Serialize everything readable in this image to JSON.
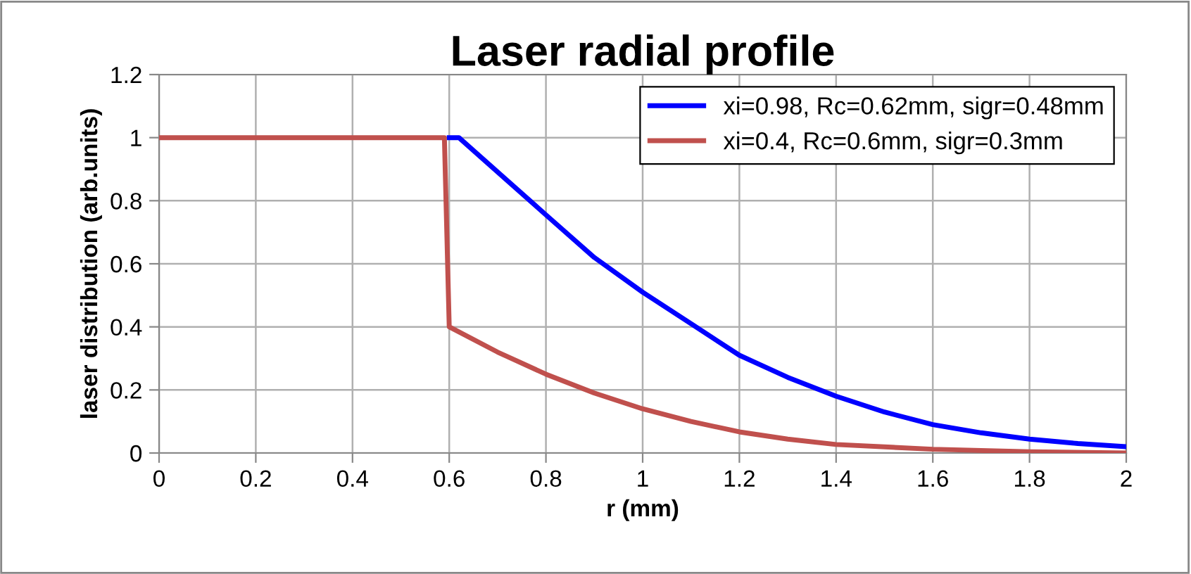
{
  "chart_data": {
    "type": "line",
    "title": "Laser radial profile",
    "xlabel": "r (mm)",
    "ylabel": "laser distribution (arb.units)",
    "xlim": [
      0,
      2
    ],
    "xticks": [
      0,
      0.2,
      0.4,
      0.6,
      0.8,
      1,
      1.2,
      1.4,
      1.6,
      1.8,
      2
    ],
    "ylim": [
      0,
      1.2
    ],
    "yticks": [
      0,
      0.2,
      0.4,
      0.6,
      0.8,
      1,
      1.2
    ],
    "grid": true,
    "legend": "top right",
    "marker": "none",
    "line_style": "solid",
    "series": [
      {
        "name": "xi=0.98, Rc=0.62mm, sigr=0.48mm",
        "color": "#0000ff",
        "x": [
          0.6,
          0.62,
          0.8,
          0.9,
          1.0,
          1.1,
          1.2,
          1.3,
          1.4,
          1.5,
          1.6,
          1.7,
          1.8,
          1.9,
          2.0
        ],
        "values": [
          1,
          1,
          0.755,
          0.62,
          0.51,
          0.41,
          0.31,
          0.24,
          0.18,
          0.13,
          0.09,
          0.064,
          0.044,
          0.03,
          0.02
        ]
      },
      {
        "name": "xi=0.4, Rc=0.6mm, sigr=0.3mm",
        "color": "#c0504d",
        "x": [
          0,
          0.59,
          0.6,
          0.7,
          0.8,
          0.9,
          1.0,
          1.1,
          1.2,
          1.3,
          1.4,
          1.6,
          1.8,
          2.0
        ],
        "values": [
          1,
          1,
          0.4,
          0.32,
          0.25,
          0.19,
          0.14,
          0.1,
          0.067,
          0.044,
          0.027,
          0.012,
          0.004,
          0
        ]
      }
    ]
  }
}
